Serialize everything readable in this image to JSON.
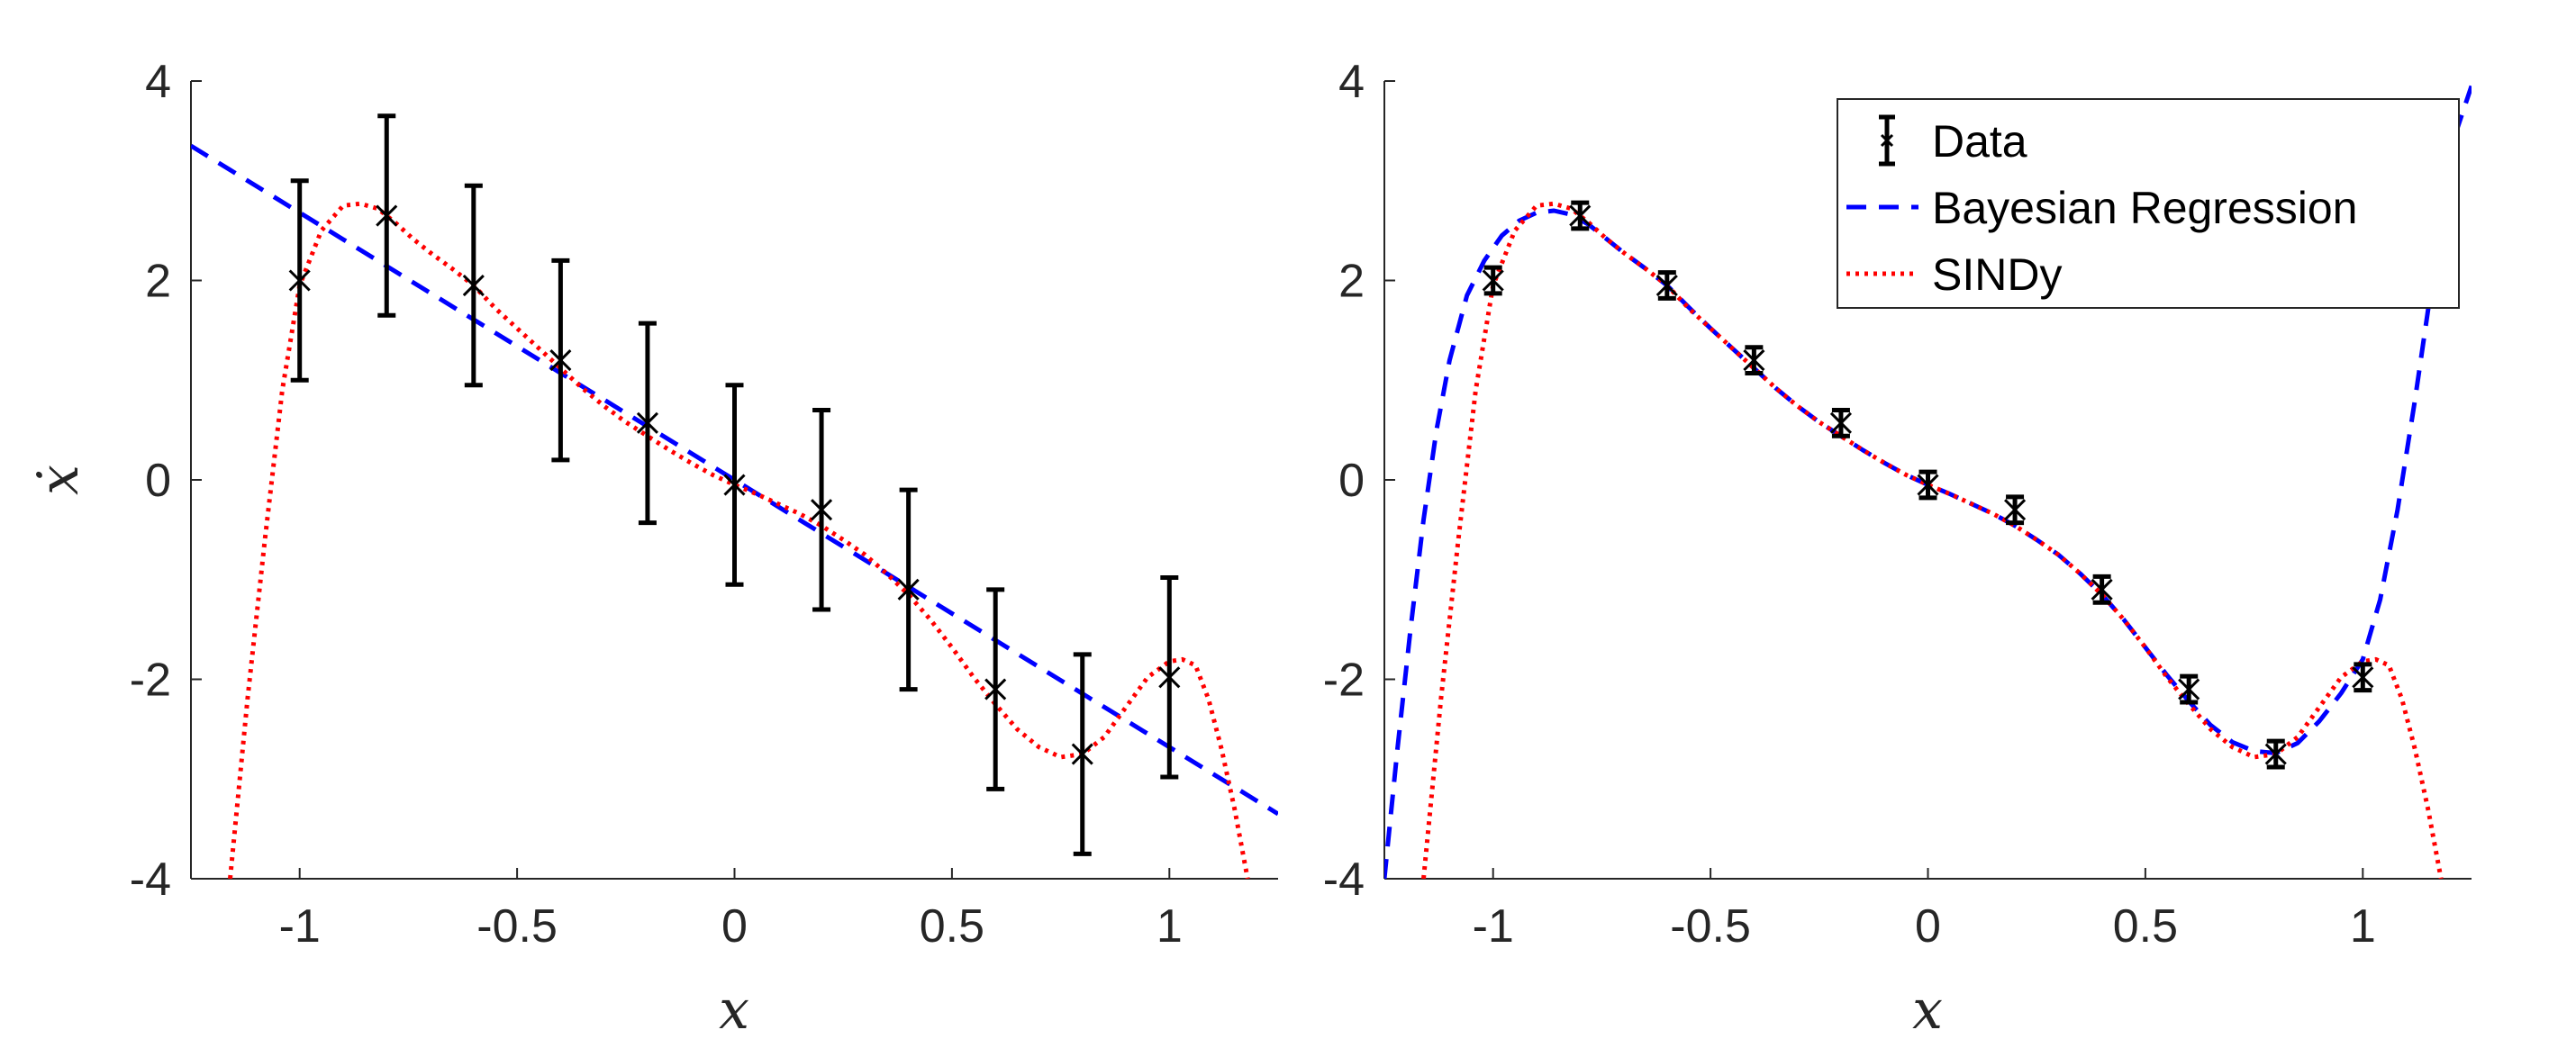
{
  "chart_data": [
    {
      "type": "line",
      "panel": "left",
      "xlabel": "x",
      "ylabel": "ẋ",
      "xlim": [
        -1.25,
        1.25
      ],
      "ylim": [
        -4,
        4
      ],
      "xticks": [
        "-1",
        "-0.5",
        "0",
        "0.5",
        "1"
      ],
      "yticks": [
        "4",
        "2",
        "0",
        "-2",
        "-4"
      ],
      "grid": false,
      "series": [
        {
          "kind": "errorbar",
          "x": [
            -1.0,
            -0.8,
            -0.6,
            -0.4,
            -0.2,
            0.0,
            0.2,
            0.4,
            0.6,
            0.8,
            1.0
          ],
          "y": [
            2.0,
            2.65,
            1.95,
            1.2,
            0.57,
            -0.05,
            -0.3,
            -1.1,
            -2.1,
            -2.75,
            -1.98
          ],
          "err": [
            1.0,
            1.0,
            1.0,
            1.0,
            1.0,
            1.0,
            1.0,
            1.0,
            1.0,
            1.0,
            1.0
          ],
          "color": "#000000"
        },
        {
          "kind": "dashed",
          "x": [
            -1.25,
            1.25
          ],
          "y": [
            3.35,
            -3.35
          ],
          "color": "#0000ff"
        },
        {
          "kind": "dotted",
          "x": [
            -1.16,
            -1.12,
            -1.08,
            -1.04,
            -1.0,
            -0.95,
            -0.9,
            -0.86,
            -0.82,
            -0.78,
            -0.74,
            -0.7,
            -0.65,
            -0.6,
            -0.55,
            -0.5,
            -0.45,
            -0.4,
            -0.35,
            -0.3,
            -0.25,
            -0.2,
            -0.15,
            -0.1,
            -0.05,
            0.0,
            0.05,
            0.1,
            0.15,
            0.2,
            0.25,
            0.3,
            0.35,
            0.4,
            0.45,
            0.5,
            0.55,
            0.6,
            0.65,
            0.7,
            0.75,
            0.8,
            0.85,
            0.9,
            0.95,
            1.0,
            1.03,
            1.06,
            1.09,
            1.12,
            1.15,
            1.18
          ],
          "y": [
            -4.0,
            -2.2,
            -0.6,
            0.9,
            1.95,
            2.5,
            2.75,
            2.77,
            2.72,
            2.58,
            2.42,
            2.28,
            2.12,
            1.95,
            1.72,
            1.52,
            1.32,
            1.12,
            0.92,
            0.74,
            0.58,
            0.44,
            0.3,
            0.17,
            0.05,
            -0.05,
            -0.14,
            -0.24,
            -0.34,
            -0.46,
            -0.6,
            -0.75,
            -0.94,
            -1.15,
            -1.4,
            -1.68,
            -1.98,
            -2.25,
            -2.5,
            -2.68,
            -2.78,
            -2.75,
            -2.58,
            -2.28,
            -1.98,
            -1.82,
            -1.8,
            -1.86,
            -2.2,
            -2.7,
            -3.3,
            -4.0
          ],
          "color": "#ff0000"
        }
      ]
    },
    {
      "type": "line",
      "panel": "right",
      "xlabel": "x",
      "xlim": [
        -1.25,
        1.25
      ],
      "ylim": [
        -4,
        4
      ],
      "xticks": [
        "-1",
        "-0.5",
        "0",
        "0.5",
        "1"
      ],
      "yticks": [
        "4",
        "2",
        "0",
        "-2",
        "-4"
      ],
      "grid": false,
      "legend": {
        "placement": "top-right",
        "entries": [
          "Data",
          "Bayesian Regression",
          "SINDy"
        ]
      },
      "series": [
        {
          "name": "Data",
          "kind": "errorbar",
          "x": [
            -1.0,
            -0.8,
            -0.6,
            -0.4,
            -0.2,
            0.0,
            0.2,
            0.4,
            0.6,
            0.8,
            1.0
          ],
          "y": [
            2.0,
            2.65,
            1.95,
            1.2,
            0.57,
            -0.05,
            -0.3,
            -1.1,
            -2.1,
            -2.75,
            -1.98
          ],
          "err": [
            0.13,
            0.13,
            0.13,
            0.13,
            0.13,
            0.13,
            0.13,
            0.13,
            0.13,
            0.13,
            0.13
          ],
          "color": "#000000"
        },
        {
          "name": "Bayesian Regression",
          "kind": "dashed",
          "x": [
            -1.25,
            -1.22,
            -1.19,
            -1.16,
            -1.13,
            -1.1,
            -1.06,
            -1.02,
            -0.98,
            -0.94,
            -0.9,
            -0.86,
            -0.82,
            -0.78,
            -0.74,
            -0.7,
            -0.65,
            -0.6,
            -0.55,
            -0.5,
            -0.45,
            -0.4,
            -0.35,
            -0.3,
            -0.25,
            -0.2,
            -0.15,
            -0.1,
            -0.05,
            0.0,
            0.05,
            0.1,
            0.15,
            0.2,
            0.25,
            0.3,
            0.35,
            0.4,
            0.45,
            0.5,
            0.55,
            0.6,
            0.65,
            0.7,
            0.75,
            0.8,
            0.85,
            0.9,
            0.95,
            1.0,
            1.04,
            1.08,
            1.12,
            1.16,
            1.2,
            1.25
          ],
          "y": [
            -4.0,
            -2.7,
            -1.5,
            -0.4,
            0.5,
            1.2,
            1.85,
            2.2,
            2.45,
            2.6,
            2.68,
            2.7,
            2.66,
            2.56,
            2.42,
            2.28,
            2.12,
            1.95,
            1.73,
            1.52,
            1.32,
            1.12,
            0.92,
            0.74,
            0.58,
            0.44,
            0.3,
            0.17,
            0.05,
            -0.05,
            -0.14,
            -0.24,
            -0.34,
            -0.46,
            -0.6,
            -0.75,
            -0.94,
            -1.15,
            -1.4,
            -1.68,
            -1.96,
            -2.22,
            -2.46,
            -2.63,
            -2.72,
            -2.74,
            -2.64,
            -2.42,
            -2.14,
            -1.8,
            -1.2,
            -0.3,
            0.8,
            2.0,
            3.3,
            3.95
          ],
          "color": "#0000ff"
        },
        {
          "name": "SINDy",
          "kind": "dotted",
          "x": [
            -1.16,
            -1.12,
            -1.08,
            -1.04,
            -1.0,
            -0.95,
            -0.9,
            -0.86,
            -0.82,
            -0.78,
            -0.74,
            -0.7,
            -0.65,
            -0.6,
            -0.55,
            -0.5,
            -0.45,
            -0.4,
            -0.35,
            -0.3,
            -0.25,
            -0.2,
            -0.15,
            -0.1,
            -0.05,
            0.0,
            0.05,
            0.1,
            0.15,
            0.2,
            0.25,
            0.3,
            0.35,
            0.4,
            0.45,
            0.5,
            0.55,
            0.6,
            0.65,
            0.7,
            0.75,
            0.8,
            0.85,
            0.9,
            0.95,
            1.0,
            1.03,
            1.06,
            1.09,
            1.12,
            1.15,
            1.18
          ],
          "y": [
            -4.0,
            -2.2,
            -0.6,
            0.9,
            1.95,
            2.5,
            2.75,
            2.77,
            2.72,
            2.58,
            2.42,
            2.28,
            2.12,
            1.95,
            1.72,
            1.52,
            1.32,
            1.12,
            0.92,
            0.74,
            0.58,
            0.44,
            0.3,
            0.17,
            0.05,
            -0.05,
            -0.14,
            -0.24,
            -0.34,
            -0.46,
            -0.6,
            -0.75,
            -0.94,
            -1.15,
            -1.4,
            -1.68,
            -1.98,
            -2.25,
            -2.5,
            -2.68,
            -2.78,
            -2.75,
            -2.58,
            -2.28,
            -1.98,
            -1.82,
            -1.8,
            -1.86,
            -2.2,
            -2.7,
            -3.3,
            -4.0
          ],
          "color": "#ff0000"
        }
      ]
    }
  ]
}
